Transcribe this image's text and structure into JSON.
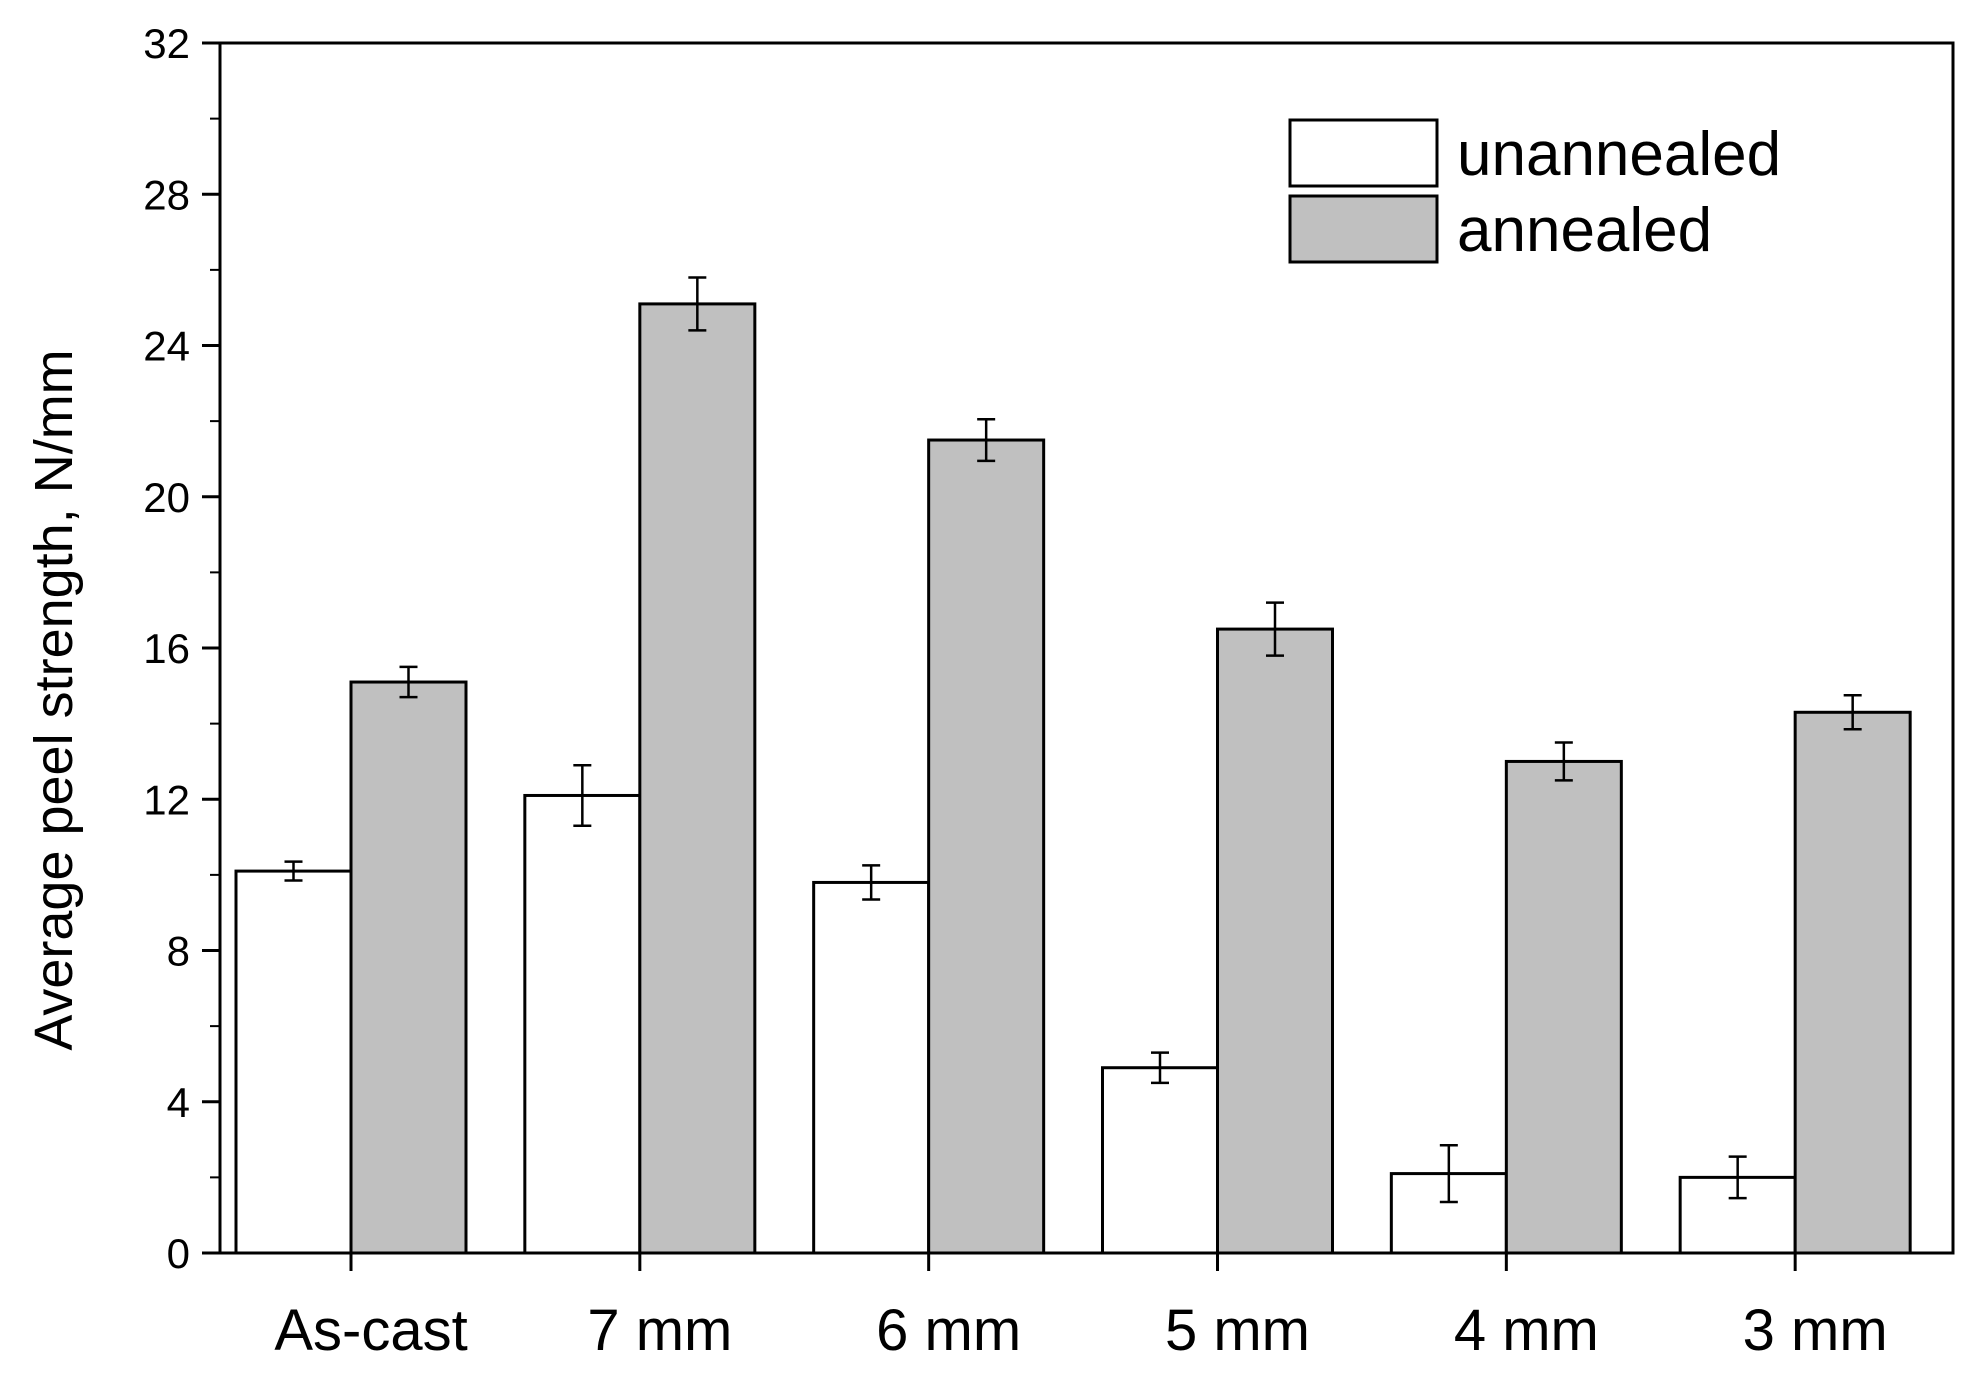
{
  "chart_data": {
    "type": "bar",
    "categories": [
      "As-cast",
      "7 mm",
      "6 mm",
      "5 mm",
      "4 mm",
      "3 mm"
    ],
    "series": [
      {
        "name": "unannealed",
        "color": "#ffffff",
        "values": [
          10.1,
          12.1,
          9.8,
          4.9,
          2.1,
          2.0
        ],
        "errors": [
          0.25,
          0.8,
          0.45,
          0.4,
          0.75,
          0.55
        ]
      },
      {
        "name": "annealed",
        "color": "#c0c0c0",
        "values": [
          15.1,
          25.1,
          21.5,
          16.5,
          13.0,
          14.3
        ],
        "errors": [
          0.4,
          0.7,
          0.55,
          0.7,
          0.5,
          0.45
        ]
      }
    ],
    "title": "",
    "xlabel": "",
    "ylabel": "Average peel strength, N/mm",
    "ylim": [
      0,
      32
    ],
    "yticks": [
      0,
      4,
      8,
      12,
      16,
      20,
      24,
      28,
      32
    ],
    "grid": false,
    "legend_position": "top-right"
  }
}
